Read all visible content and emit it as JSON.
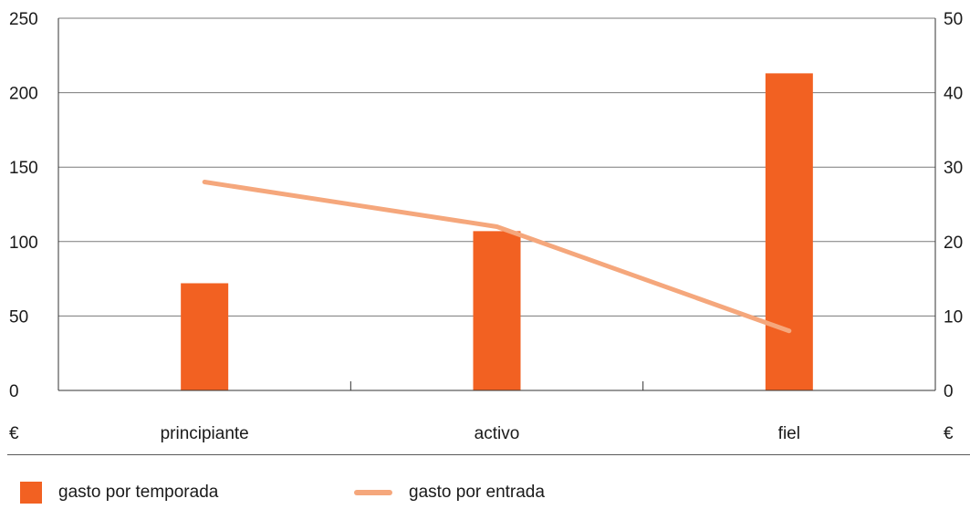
{
  "chart_data": {
    "type": "bar",
    "categories": [
      "principiante",
      "activo",
      "fiel"
    ],
    "series": [
      {
        "name": "gasto por temporada",
        "kind": "bar",
        "axis": "left",
        "color": "#f26122",
        "values": [
          72,
          107,
          213
        ]
      },
      {
        "name": "gasto por entrada",
        "kind": "line",
        "axis": "right",
        "color": "#f5a77c",
        "values": [
          28,
          22,
          8
        ]
      }
    ],
    "y_left": {
      "ylim": [
        0,
        250
      ],
      "ticks": [
        0,
        50,
        100,
        150,
        200,
        250
      ],
      "unit": "€"
    },
    "y_right": {
      "ylim": [
        0,
        50
      ],
      "ticks": [
        0,
        10,
        20,
        30,
        40,
        50
      ],
      "unit": "€"
    },
    "grid": true,
    "legend_position": "bottom"
  }
}
